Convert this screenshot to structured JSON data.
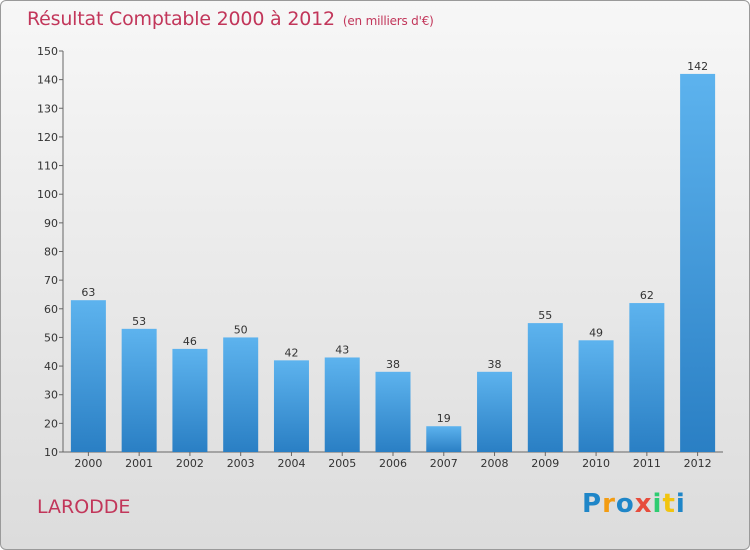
{
  "title": "Résultat Comptable 2000 à 2012",
  "unit_note": "(en milliers d'€)",
  "commune": "LARODDE",
  "logo": {
    "letters": [
      "P",
      "r",
      "o",
      "x",
      "i",
      "t",
      "i"
    ],
    "colors": [
      "#1f86c8",
      "#f39c12",
      "#1f86c8",
      "#e74c3c",
      "#2ecc71",
      "#f1c40f",
      "#1f86c8"
    ]
  },
  "chart_data": {
    "type": "bar",
    "categories": [
      "2000",
      "2001",
      "2002",
      "2003",
      "2004",
      "2005",
      "2006",
      "2007",
      "2008",
      "2009",
      "2010",
      "2011",
      "2012"
    ],
    "values": [
      63,
      53,
      46,
      50,
      42,
      43,
      38,
      19,
      38,
      55,
      49,
      62,
      142
    ],
    "ylim": [
      10,
      150
    ],
    "yticks": [
      10,
      20,
      30,
      40,
      50,
      60,
      70,
      80,
      90,
      100,
      110,
      120,
      130,
      140,
      150
    ],
    "bar_color": "#3f9be0",
    "grid": false
  }
}
